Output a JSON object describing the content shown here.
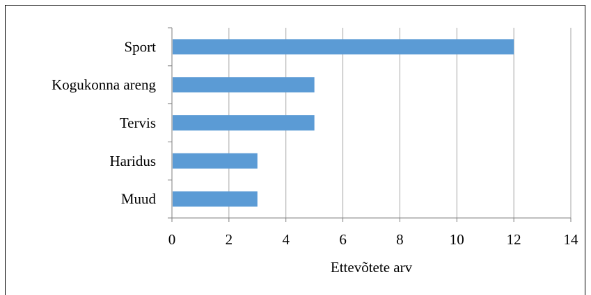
{
  "chart_data": {
    "type": "bar",
    "orientation": "horizontal",
    "categories": [
      "Sport",
      "Kogukonna areng",
      "Tervis",
      "Haridus",
      "Muud"
    ],
    "values": [
      12,
      5,
      5,
      3,
      3
    ],
    "title": "",
    "xlabel": "Ettevõtete arv",
    "ylabel": "",
    "xlim": [
      0,
      14
    ],
    "xticks": [
      0,
      2,
      4,
      6,
      8,
      10,
      12,
      14
    ],
    "grid": "vertical",
    "legend": "none",
    "bar_color": "#5B9BD5",
    "grid_color": "#A6A6A6",
    "axis_color": "#7F7F7F"
  }
}
